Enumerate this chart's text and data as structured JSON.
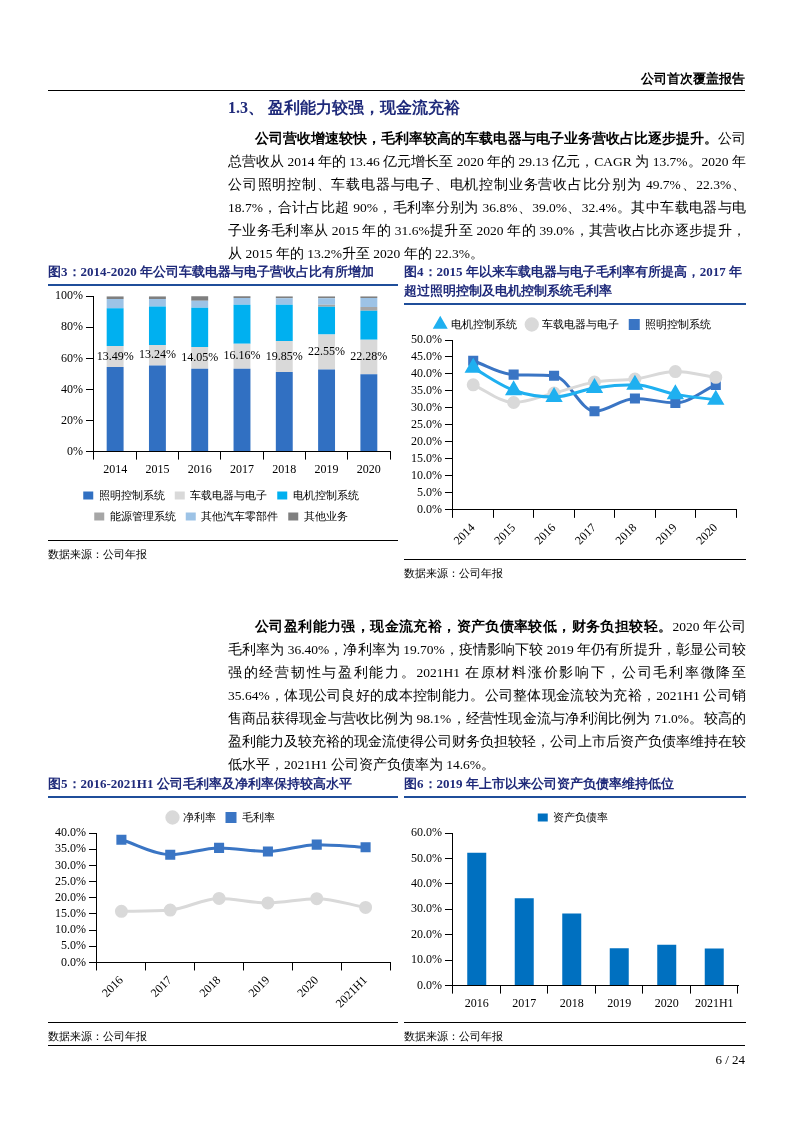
{
  "chart_data": [
    {
      "type": "other",
      "title": "公司首次覆盖报告"
    },
    {
      "type": "other",
      "title": "1.3、 盈利能力较强，现金流充裕",
      "subtitle": "公司营收增速较快，毛利率较高的车载电器与电子业务营收占比逐步提升。",
      "annotations": [
        "公司总营收从 2014 年的 13.46 亿元增长至 2020 年的 29.13 亿元，CAGR 为 13.7%。2020 年公司照明控制、车载电器与电子、电机控制业务营收占比分别为 49.7%、22.3%、18.7%，合计占比超 90%，毛利率分别为 36.8%、39.0%、32.4%。其中车载电器与电子业务毛利率从 2015 年的 31.6%提升至 2020 年的 39.0%，其营收占比亦逐步提升，从 2015 年的 13.2%升至 2020 年的 22.3%。"
      ]
    },
    {
      "type": "bar",
      "stacked": true,
      "title": "图3：2014-2020 年公司车载电器与电子营收占比有所增加",
      "categories": [
        "2014",
        "2015",
        "2016",
        "2017",
        "2018",
        "2019",
        "2020"
      ],
      "ylim": [
        0,
        100
      ],
      "yticks": [
        {
          "value": 0,
          "label": "0%"
        },
        {
          "value": 20,
          "label": "20%"
        },
        {
          "value": 40,
          "label": "40%"
        },
        {
          "value": 60,
          "label": "60%"
        },
        {
          "value": 80,
          "label": "80%"
        },
        {
          "value": 100,
          "label": "100%"
        }
      ],
      "grid": false,
      "legend": "bottom",
      "annotations": [
        "数据来源：公司年报"
      ],
      "series": [
        {
          "name": "照明控制系统",
          "color": "#3170c2",
          "values": [
            54.5,
            55.4,
            53.3,
            53.3,
            51.3,
            52.8,
            49.7
          ]
        },
        {
          "name": "车载电器与电子",
          "color": "#d9d9d9",
          "values": [
            13.49,
            13.24,
            14.05,
            16.16,
            19.85,
            22.55,
            22.28
          ],
          "value_labels": [
            "13.49%",
            "13.24%",
            "14.05%",
            "16.16%",
            "19.85%",
            "22.55%",
            "22.28%"
          ]
        },
        {
          "name": "电机控制系统",
          "color": "#00b0f0",
          "values": [
            24.3,
            24.7,
            25.2,
            25.1,
            23.3,
            17.9,
            18.7
          ]
        },
        {
          "name": "能源管理系统",
          "color": "#a6a6a6",
          "values": [
            0,
            0,
            0,
            0,
            0,
            1.2,
            2.3
          ]
        },
        {
          "name": "其他汽车零部件",
          "color": "#9dc3e6",
          "values": [
            5.9,
            4.9,
            4.6,
            4.3,
            4.3,
            4.3,
            5.8
          ]
        },
        {
          "name": "其他业务",
          "color": "#7f7f7f",
          "values": [
            1.8,
            1.7,
            2.9,
            1.2,
            1.2,
            1.2,
            1.2
          ]
        }
      ]
    },
    {
      "type": "line",
      "title": "图4：2015 年以来车载电器与电子毛利率有所提高，2017 年超过照明控制及电机控制系统毛利率",
      "categories": [
        "2014",
        "2015",
        "2016",
        "2017",
        "2018",
        "2019",
        "2020"
      ],
      "ylim": [
        0,
        50
      ],
      "yticks": [
        {
          "value": 0,
          "label": "0.0%"
        },
        {
          "value": 5,
          "label": "5.0%"
        },
        {
          "value": 10,
          "label": "10.0%"
        },
        {
          "value": 15,
          "label": "15.0%"
        },
        {
          "value": 20,
          "label": "20.0%"
        },
        {
          "value": 25,
          "label": "25.0%"
        },
        {
          "value": 30,
          "label": "30.0%"
        },
        {
          "value": 35,
          "label": "35.0%"
        },
        {
          "value": 40,
          "label": "40.0%"
        },
        {
          "value": 45,
          "label": "45.0%"
        },
        {
          "value": 50,
          "label": "50.0%"
        }
      ],
      "grid": false,
      "legend": "top",
      "annotations": [
        "数据来源：公司年报"
      ],
      "series": [
        {
          "name": "照明控制系统",
          "color": "#3a75c4",
          "marker": "square",
          "values": [
            43.9,
            39.8,
            39.5,
            29.0,
            32.8,
            31.5,
            36.8
          ]
        },
        {
          "name": "车载电器与电子",
          "color": "#d9d9d9",
          "marker": "circle",
          "values": [
            36.8,
            31.6,
            34.4,
            37.6,
            38.5,
            40.7,
            39.0
          ]
        },
        {
          "name": "电机控制系统",
          "color": "#1fb0f0",
          "marker": "triangle",
          "values": [
            41.8,
            35.2,
            33.2,
            35.9,
            36.8,
            34.0,
            32.4
          ]
        }
      ]
    },
    {
      "type": "other",
      "subtitle": "公司盈利能力强，现金流充裕，资产负债率较低，财务负担较轻。",
      "annotations": [
        "2020 年公司毛利率为 36.40%，净利率为 19.70%，疫情影响下较 2019 年仍有所提升，彰显公司较强的经营韧性与盈利能力。2021H1 在原材料涨价影响下，公司毛利率微降至 35.64%，体现公司良好的成本控制能力。公司整体现金流较为充裕，2021H1 公司销售商品获得现金与营收比例为 98.1%，经营性现金流与净利润比例为 71.0%。较高的盈利能力及较充裕的现金流使得公司财务负担较轻，公司上市后资产负债率维持在较低水平，2021H1 公司资产负债率为 14.6%。"
      ]
    },
    {
      "type": "line",
      "title": "图5：2016-2021H1 公司毛利率及净利率保持较高水平",
      "categories": [
        "2016",
        "2017",
        "2018",
        "2019",
        "2020",
        "2021H1"
      ],
      "ylim": [
        0,
        40
      ],
      "yticks": [
        {
          "value": 0,
          "label": "0.0%"
        },
        {
          "value": 5,
          "label": "5.0%"
        },
        {
          "value": 10,
          "label": "10.0%"
        },
        {
          "value": 15,
          "label": "15.0%"
        },
        {
          "value": 20,
          "label": "20.0%"
        },
        {
          "value": 25,
          "label": "25.0%"
        },
        {
          "value": 30,
          "label": "30.0%"
        },
        {
          "value": 35,
          "label": "35.0%"
        },
        {
          "value": 40,
          "label": "40.0%"
        }
      ],
      "grid": false,
      "legend": "top",
      "annotations": [
        "数据来源：公司年报"
      ],
      "series": [
        {
          "name": "毛利率",
          "color": "#3a75c4",
          "marker": "square",
          "values": [
            37.9,
            33.3,
            35.4,
            34.3,
            36.4,
            35.6
          ]
        },
        {
          "name": "净利率",
          "color": "#d9d9d9",
          "marker": "circle",
          "values": [
            15.8,
            16.2,
            19.8,
            18.4,
            19.7,
            17.0
          ]
        }
      ]
    },
    {
      "type": "bar",
      "title": "图6：2019 年上市以来公司资产负债率维持低位",
      "categories": [
        "2016",
        "2017",
        "2018",
        "2019",
        "2020",
        "2021H1"
      ],
      "ylim": [
        0,
        60
      ],
      "yticks": [
        {
          "value": 0,
          "label": "0.0%"
        },
        {
          "value": 10,
          "label": "10.0%"
        },
        {
          "value": 20,
          "label": "20.0%"
        },
        {
          "value": 30,
          "label": "30.0%"
        },
        {
          "value": 40,
          "label": "40.0%"
        },
        {
          "value": 50,
          "label": "50.0%"
        },
        {
          "value": 60,
          "label": "60.0%"
        }
      ],
      "grid": false,
      "legend": "top",
      "annotations": [
        "数据来源：公司年报"
      ],
      "series": [
        {
          "name": "资产负债率",
          "color": "#0070c0",
          "values": [
            52.2,
            34.3,
            28.3,
            14.7,
            16.1,
            14.6
          ]
        }
      ]
    },
    {
      "type": "other",
      "title": "6 / 24"
    }
  ]
}
